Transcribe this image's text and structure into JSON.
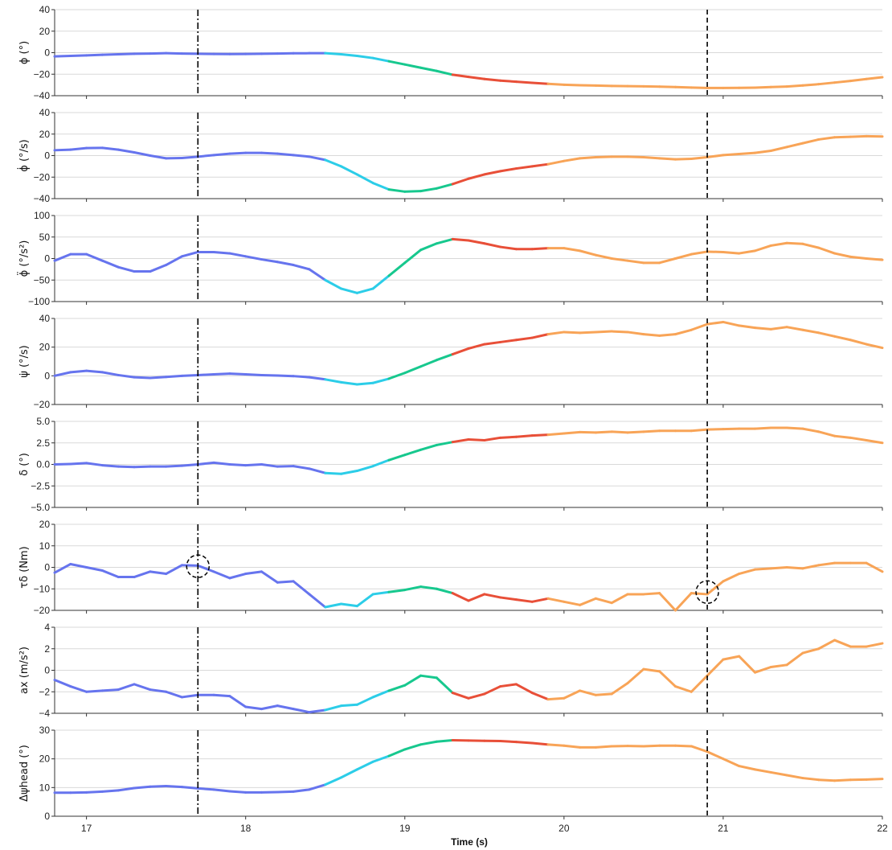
{
  "chart_data": [
    {
      "type": "line",
      "ylabel": "ϕ (°)",
      "ylim": [
        -40,
        40
      ],
      "yticks": [
        -40,
        -20,
        0,
        20,
        40
      ],
      "grid": true,
      "x": [
        16.8,
        16.9,
        17.0,
        17.1,
        17.2,
        17.3,
        17.4,
        17.5,
        17.6,
        17.7,
        17.8,
        17.9,
        18.0,
        18.1,
        18.2,
        18.3,
        18.4,
        18.5,
        18.6,
        18.7,
        18.8,
        18.9,
        19.0,
        19.1,
        19.2,
        19.3,
        19.4,
        19.5,
        19.6,
        19.7,
        19.8,
        19.9,
        20.0,
        20.1,
        20.2,
        20.3,
        20.4,
        20.5,
        20.6,
        20.7,
        20.8,
        20.9,
        21.0,
        21.1,
        21.2,
        21.3,
        21.4,
        21.5,
        21.6,
        21.7,
        21.8,
        21.9,
        22.0
      ],
      "y": [
        -3.5,
        -3.0,
        -2.5,
        -2.0,
        -1.5,
        -1.0,
        -0.8,
        -0.5,
        -0.8,
        -1.0,
        -1.2,
        -1.3,
        -1.2,
        -1.0,
        -0.8,
        -0.6,
        -0.5,
        -0.5,
        -1.5,
        -3.0,
        -5.0,
        -8.0,
        -11.0,
        -14.0,
        -17.0,
        -20.5,
        -22.5,
        -24.5,
        -26.0,
        -27.0,
        -28.0,
        -29.0,
        -29.8,
        -30.3,
        -30.6,
        -30.9,
        -31.1,
        -31.3,
        -31.6,
        -32.0,
        -32.4,
        -32.8,
        -32.8,
        -32.7,
        -32.5,
        -32.0,
        -31.5,
        -30.5,
        -29.3,
        -27.8,
        -26.3,
        -24.5,
        -22.8
      ]
    },
    {
      "type": "line",
      "ylabel": "ϕ̇ (°/s)",
      "ylim": [
        -40,
        40
      ],
      "yticks": [
        -40,
        -20,
        0,
        20,
        40
      ],
      "grid": true,
      "x": [
        16.8,
        16.9,
        17.0,
        17.1,
        17.2,
        17.3,
        17.4,
        17.5,
        17.6,
        17.7,
        17.8,
        17.9,
        18.0,
        18.1,
        18.2,
        18.3,
        18.4,
        18.5,
        18.6,
        18.7,
        18.8,
        18.9,
        19.0,
        19.1,
        19.2,
        19.3,
        19.4,
        19.5,
        19.6,
        19.7,
        19.8,
        19.9,
        20.0,
        20.1,
        20.2,
        20.3,
        20.4,
        20.5,
        20.6,
        20.7,
        20.8,
        20.9,
        21.0,
        21.1,
        21.2,
        21.3,
        21.4,
        21.5,
        21.6,
        21.7,
        21.8,
        21.9,
        22.0
      ],
      "y": [
        5.0,
        5.5,
        7.0,
        7.2,
        5.5,
        3.0,
        0.0,
        -2.5,
        -2.2,
        -1.0,
        0.5,
        1.8,
        2.5,
        2.5,
        1.8,
        0.5,
        -1.0,
        -4.0,
        -10.0,
        -17.5,
        -25.5,
        -31.5,
        -33.5,
        -33.0,
        -30.5,
        -26.5,
        -21.5,
        -17.5,
        -14.5,
        -12.0,
        -10.0,
        -8.0,
        -5.0,
        -2.5,
        -1.5,
        -1.0,
        -1.0,
        -1.5,
        -2.5,
        -3.5,
        -3.0,
        -1.5,
        0.5,
        1.5,
        2.5,
        4.5,
        8.0,
        11.5,
        15.0,
        17.0,
        17.5,
        18.0,
        17.8
      ]
    },
    {
      "type": "line",
      "ylabel": "ϕ̈ (°/s²)",
      "ylim": [
        -100,
        100
      ],
      "yticks": [
        -100,
        -50,
        0,
        50,
        100
      ],
      "grid": true,
      "x": [
        16.8,
        16.9,
        17.0,
        17.1,
        17.2,
        17.3,
        17.4,
        17.5,
        17.6,
        17.7,
        17.8,
        17.9,
        18.0,
        18.1,
        18.2,
        18.3,
        18.4,
        18.5,
        18.6,
        18.7,
        18.8,
        18.9,
        19.0,
        19.1,
        19.2,
        19.3,
        19.4,
        19.5,
        19.6,
        19.7,
        19.8,
        19.9,
        20.0,
        20.1,
        20.2,
        20.3,
        20.4,
        20.5,
        20.6,
        20.7,
        20.8,
        20.9,
        21.0,
        21.1,
        21.2,
        21.3,
        21.4,
        21.5,
        21.6,
        21.7,
        21.8,
        21.9,
        22.0
      ],
      "y": [
        -5,
        10,
        10,
        -5,
        -20,
        -30,
        -30,
        -15,
        5,
        15,
        15,
        12,
        5,
        -2,
        -8,
        -15,
        -25,
        -50,
        -70,
        -80,
        -70,
        -40,
        -10,
        20,
        35,
        45,
        42,
        35,
        27,
        22,
        22,
        24,
        24,
        18,
        8,
        0,
        -5,
        -10,
        -10,
        0,
        10,
        16,
        15,
        12,
        18,
        30,
        36,
        34,
        25,
        12,
        4,
        0,
        -3
      ]
    },
    {
      "type": "line",
      "ylabel": "ψ̇ (°/s)",
      "ylim": [
        -20,
        40
      ],
      "yticks": [
        -20,
        0,
        20,
        40
      ],
      "grid": true,
      "x": [
        16.8,
        16.9,
        17.0,
        17.1,
        17.2,
        17.3,
        17.4,
        17.5,
        17.6,
        17.7,
        17.8,
        17.9,
        18.0,
        18.1,
        18.2,
        18.3,
        18.4,
        18.5,
        18.6,
        18.7,
        18.8,
        18.9,
        19.0,
        19.1,
        19.2,
        19.3,
        19.4,
        19.5,
        19.6,
        19.7,
        19.8,
        19.9,
        20.0,
        20.1,
        20.2,
        20.3,
        20.4,
        20.5,
        20.6,
        20.7,
        20.8,
        20.9,
        21.0,
        21.1,
        21.2,
        21.3,
        21.4,
        21.5,
        21.6,
        21.7,
        21.8,
        21.9,
        22.0
      ],
      "y": [
        0.0,
        2.5,
        3.5,
        2.5,
        0.5,
        -1.0,
        -1.5,
        -0.8,
        0.0,
        0.5,
        1.0,
        1.5,
        1.0,
        0.5,
        0.2,
        -0.2,
        -1.0,
        -2.5,
        -4.5,
        -6.0,
        -5.0,
        -2.0,
        2.0,
        6.5,
        11.0,
        15.0,
        19.0,
        22.0,
        23.5,
        25.0,
        26.5,
        29.0,
        30.5,
        30.0,
        30.5,
        31.0,
        30.5,
        29.0,
        28.0,
        29.0,
        32.0,
        36.0,
        37.5,
        35.0,
        33.5,
        32.5,
        34.0,
        32.0,
        30.0,
        27.5,
        25.0,
        22.0,
        19.5
      ]
    },
    {
      "type": "line",
      "ylabel": "δ (°)",
      "ylim": [
        -5.0,
        5.0
      ],
      "yticks": [
        -5.0,
        -2.5,
        0.0,
        2.5,
        5.0
      ],
      "ytick_labels": [
        "−5.0",
        "−2.5",
        "0.0",
        "2.5",
        "5.0"
      ],
      "grid": true,
      "x": [
        16.8,
        16.9,
        17.0,
        17.1,
        17.2,
        17.3,
        17.4,
        17.5,
        17.6,
        17.7,
        17.8,
        17.9,
        18.0,
        18.1,
        18.2,
        18.3,
        18.4,
        18.5,
        18.6,
        18.7,
        18.8,
        18.9,
        19.0,
        19.1,
        19.2,
        19.3,
        19.4,
        19.5,
        19.6,
        19.7,
        19.8,
        19.9,
        20.0,
        20.1,
        20.2,
        20.3,
        20.4,
        20.5,
        20.6,
        20.7,
        20.8,
        20.9,
        21.0,
        21.1,
        21.2,
        21.3,
        21.4,
        21.5,
        21.6,
        21.7,
        21.8,
        21.9,
        22.0
      ],
      "y": [
        0.0,
        0.05,
        0.15,
        -0.1,
        -0.25,
        -0.3,
        -0.25,
        -0.25,
        -0.15,
        0.0,
        0.2,
        0.0,
        -0.1,
        0.0,
        -0.25,
        -0.2,
        -0.5,
        -1.0,
        -1.1,
        -0.75,
        -0.2,
        0.5,
        1.1,
        1.7,
        2.25,
        2.6,
        2.9,
        2.8,
        3.1,
        3.2,
        3.35,
        3.45,
        3.6,
        3.75,
        3.7,
        3.8,
        3.7,
        3.8,
        3.9,
        3.9,
        3.9,
        4.05,
        4.1,
        4.15,
        4.15,
        4.25,
        4.25,
        4.15,
        3.8,
        3.3,
        3.1,
        2.8,
        2.5
      ]
    },
    {
      "type": "line",
      "ylabel": "τδ (Nm)",
      "ylim": [
        -20,
        20
      ],
      "yticks": [
        -20,
        -10,
        0,
        10,
        20
      ],
      "grid": true,
      "x": [
        16.8,
        16.9,
        17.0,
        17.1,
        17.2,
        17.3,
        17.4,
        17.5,
        17.6,
        17.7,
        17.8,
        17.9,
        18.0,
        18.1,
        18.2,
        18.3,
        18.4,
        18.5,
        18.6,
        18.7,
        18.8,
        18.9,
        19.0,
        19.1,
        19.2,
        19.3,
        19.4,
        19.5,
        19.6,
        19.7,
        19.8,
        19.9,
        20.0,
        20.1,
        20.2,
        20.3,
        20.4,
        20.5,
        20.6,
        20.7,
        20.8,
        20.9,
        21.0,
        21.1,
        21.2,
        21.3,
        21.4,
        21.5,
        21.6,
        21.7,
        21.8,
        21.9,
        22.0
      ],
      "y": [
        -2.5,
        1.5,
        0.0,
        -1.5,
        -4.5,
        -4.5,
        -2.0,
        -3.0,
        1.0,
        0.8,
        -2.0,
        -5.0,
        -3.0,
        -2.0,
        -7.0,
        -6.5,
        -12.5,
        -18.5,
        -17.0,
        -18.0,
        -12.5,
        -11.5,
        -10.5,
        -9.0,
        -10.0,
        -12.0,
        -15.5,
        -12.5,
        -14.0,
        -15.0,
        -16.0,
        -14.5,
        -16.0,
        -17.5,
        -14.5,
        -16.5,
        -12.5,
        -12.5,
        -12.0,
        -20.0,
        -12.0,
        -12.5,
        -6.5,
        -3.0,
        -1.0,
        -0.5,
        0.0,
        -0.5,
        1.0,
        2.0,
        2.0,
        2.0,
        -2.0
      ]
    },
    {
      "type": "line",
      "ylabel": "ax (m/s²)",
      "ylim": [
        -4,
        4
      ],
      "yticks": [
        -4,
        -2,
        0,
        2,
        4
      ],
      "grid": true,
      "x": [
        16.8,
        16.9,
        17.0,
        17.1,
        17.2,
        17.3,
        17.4,
        17.5,
        17.6,
        17.7,
        17.8,
        17.9,
        18.0,
        18.1,
        18.2,
        18.3,
        18.4,
        18.5,
        18.6,
        18.7,
        18.8,
        18.9,
        19.0,
        19.1,
        19.2,
        19.3,
        19.4,
        19.5,
        19.6,
        19.7,
        19.8,
        19.9,
        20.0,
        20.1,
        20.2,
        20.3,
        20.4,
        20.5,
        20.6,
        20.7,
        20.8,
        20.9,
        21.0,
        21.1,
        21.2,
        21.3,
        21.4,
        21.5,
        21.6,
        21.7,
        21.8,
        21.9,
        22.0
      ],
      "y": [
        -0.9,
        -1.5,
        -2.0,
        -1.9,
        -1.8,
        -1.3,
        -1.8,
        -2.0,
        -2.5,
        -2.3,
        -2.3,
        -2.4,
        -3.4,
        -3.6,
        -3.3,
        -3.6,
        -3.9,
        -3.7,
        -3.3,
        -3.2,
        -2.5,
        -1.9,
        -1.4,
        -0.5,
        -0.7,
        -2.1,
        -2.6,
        -2.2,
        -1.5,
        -1.3,
        -2.1,
        -2.7,
        -2.6,
        -1.9,
        -2.3,
        -2.2,
        -1.2,
        0.1,
        -0.1,
        -1.5,
        -2.0,
        -0.5,
        1.0,
        1.3,
        -0.2,
        0.3,
        0.5,
        1.6,
        2.0,
        2.8,
        2.2,
        2.2,
        2.5
      ]
    },
    {
      "type": "line",
      "ylabel": "Δψhead (°)",
      "ylim": [
        0,
        30
      ],
      "yticks": [
        0,
        10,
        20,
        30
      ],
      "grid": true,
      "x": [
        16.8,
        16.9,
        17.0,
        17.1,
        17.2,
        17.3,
        17.4,
        17.5,
        17.6,
        17.7,
        17.8,
        17.9,
        18.0,
        18.1,
        18.2,
        18.3,
        18.4,
        18.5,
        18.6,
        18.7,
        18.8,
        18.9,
        19.0,
        19.1,
        19.2,
        19.3,
        19.4,
        19.5,
        19.6,
        19.7,
        19.8,
        19.9,
        20.0,
        20.1,
        20.2,
        20.3,
        20.4,
        20.5,
        20.6,
        20.7,
        20.8,
        20.9,
        21.0,
        21.1,
        21.2,
        21.3,
        21.4,
        21.5,
        21.6,
        21.7,
        21.8,
        21.9,
        22.0
      ],
      "y": [
        8.2,
        8.2,
        8.3,
        8.6,
        9.0,
        9.8,
        10.3,
        10.5,
        10.2,
        9.7,
        9.3,
        8.7,
        8.3,
        8.3,
        8.4,
        8.6,
        9.3,
        11.0,
        13.5,
        16.3,
        19.0,
        21.0,
        23.3,
        25.0,
        26.0,
        26.5,
        26.4,
        26.3,
        26.2,
        25.9,
        25.5,
        25.0,
        24.6,
        24.0,
        24.0,
        24.4,
        24.5,
        24.4,
        24.6,
        24.6,
        24.4,
        22.5,
        20.0,
        17.5,
        16.3,
        15.3,
        14.3,
        13.3,
        12.7,
        12.4,
        12.7,
        12.8,
        13.0
      ]
    }
  ],
  "x_axis": {
    "xlabel": "Time (s)",
    "xlim": [
      16.8,
      22.0
    ],
    "xticks": [
      17,
      18,
      19,
      20,
      21,
      22
    ],
    "xtick_labels": [
      "17",
      "18",
      "19",
      "20",
      "21",
      "22"
    ]
  },
  "phases": [
    {
      "from": 16.8,
      "to": 18.5,
      "color": "#6674ee"
    },
    {
      "from": 18.5,
      "to": 18.9,
      "color": "#2ccde8"
    },
    {
      "from": 18.9,
      "to": 19.3,
      "color": "#17c88e"
    },
    {
      "from": 19.3,
      "to": 19.9,
      "color": "#e84f38"
    },
    {
      "from": 19.9,
      "to": 22.0,
      "color": "#f8a457"
    }
  ],
  "markers": {
    "dashdot_x": 17.7,
    "dashed_x": 20.9,
    "circles": [
      {
        "panel": 5,
        "x": 17.7,
        "y": 0.5
      },
      {
        "panel": 5,
        "x": 20.9,
        "y": -11.5
      }
    ]
  }
}
